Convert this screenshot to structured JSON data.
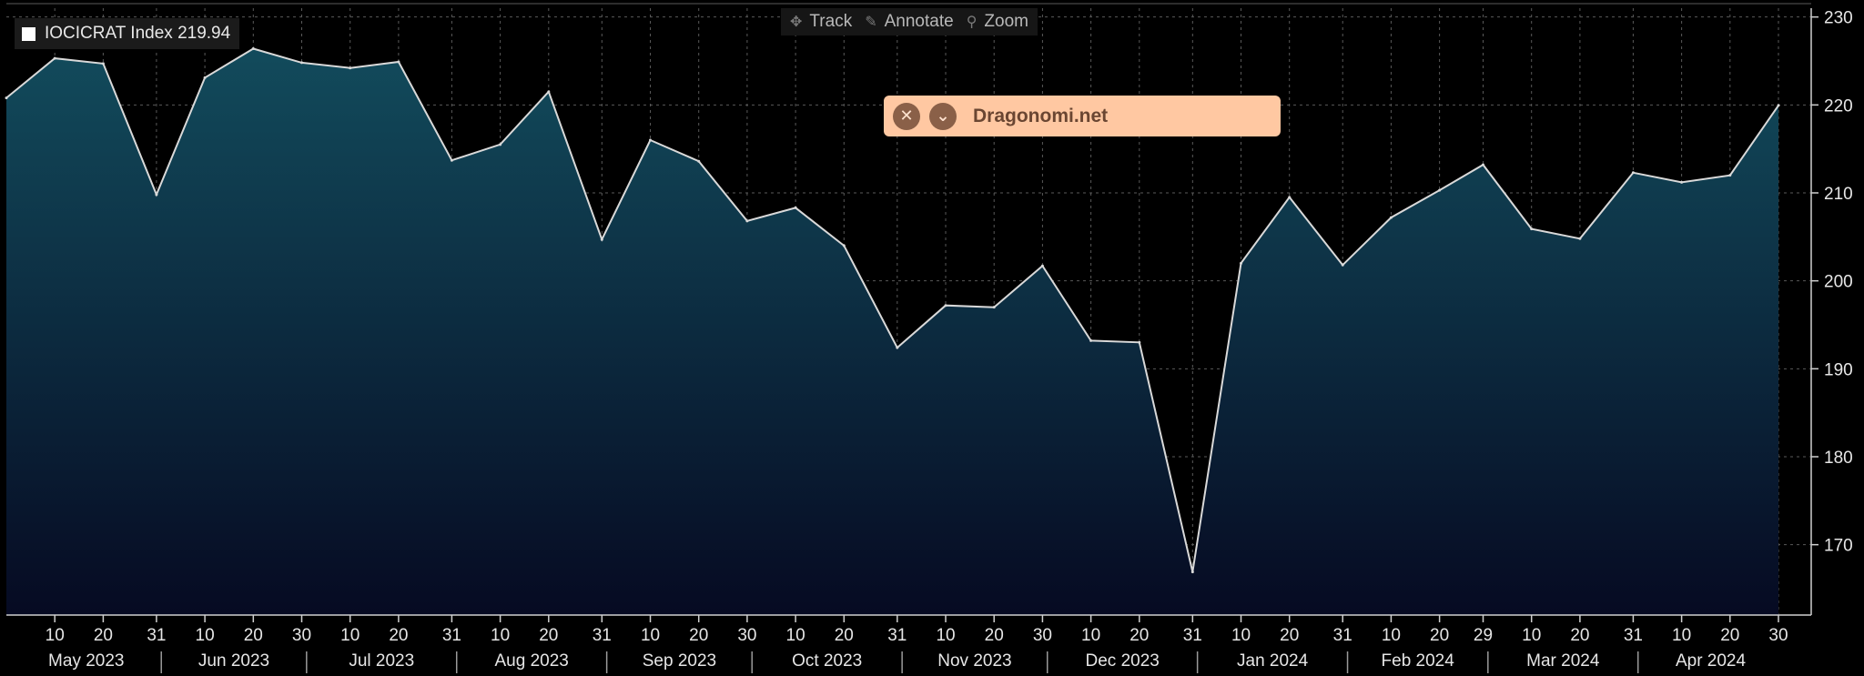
{
  "legend": {
    "label": "IOCICRAT Index 219.94",
    "swatch_color": "#ffffff"
  },
  "toolbar": {
    "track_label": "Track",
    "annotate_label": "Annotate",
    "zoom_label": "Zoom"
  },
  "banner": {
    "text": "Dragonomi.net",
    "close_icon": "close-icon",
    "expand_icon": "chevron-down-icon"
  },
  "colors": {
    "background": "#000000",
    "line": "#d9d9d9",
    "fill_top": "#124b5c",
    "fill_bottom": "#060a22",
    "banner": "#ffc8a2"
  },
  "chart_data": {
    "type": "area",
    "title": "",
    "xlabel": "",
    "ylabel": "",
    "ylim": [
      162,
      231
    ],
    "yticks": [
      170,
      180,
      190,
      200,
      210,
      220,
      230
    ],
    "grid": true,
    "y_axis_side": "right",
    "series": [
      {
        "name": "IOCICRAT Index",
        "x": [
          "2023-04-30",
          "2023-05-10",
          "2023-05-20",
          "2023-05-31",
          "2023-06-10",
          "2023-06-20",
          "2023-06-30",
          "2023-07-10",
          "2023-07-20",
          "2023-07-31",
          "2023-08-10",
          "2023-08-20",
          "2023-08-31",
          "2023-09-10",
          "2023-09-20",
          "2023-09-30",
          "2023-10-10",
          "2023-10-20",
          "2023-10-31",
          "2023-11-10",
          "2023-11-20",
          "2023-11-30",
          "2023-12-10",
          "2023-12-20",
          "2023-12-31",
          "2024-01-10",
          "2024-01-20",
          "2024-01-31",
          "2024-02-10",
          "2024-02-20",
          "2024-02-29",
          "2024-03-10",
          "2024-03-20",
          "2024-03-31",
          "2024-04-10",
          "2024-04-20",
          "2024-04-30"
        ],
        "values": [
          220.8,
          225.3,
          224.7,
          209.8,
          223.1,
          226.4,
          224.8,
          224.2,
          224.9,
          213.7,
          215.5,
          221.5,
          204.7,
          216.0,
          213.6,
          206.8,
          208.3,
          204.0,
          192.4,
          197.2,
          197.0,
          201.7,
          193.2,
          193.0,
          166.9,
          202.0,
          209.5,
          201.8,
          207.2,
          210.3,
          213.2,
          205.9,
          204.8,
          212.3,
          211.2,
          212.0,
          219.94
        ]
      }
    ],
    "x_day_ticks": [
      "10",
      "20",
      "31",
      "10",
      "20",
      "30",
      "10",
      "20",
      "31",
      "10",
      "20",
      "31",
      "10",
      "20",
      "30",
      "10",
      "20",
      "31",
      "10",
      "20",
      "30",
      "10",
      "20",
      "31",
      "10",
      "20",
      "31",
      "10",
      "20",
      "29",
      "10",
      "20",
      "31",
      "10",
      "20",
      "30"
    ],
    "x_month_labels": [
      "May 2023",
      "Jun 2023",
      "Jul 2023",
      "Aug 2023",
      "Sep 2023",
      "Oct 2023",
      "Nov 2023",
      "Dec 2023",
      "Jan 2024",
      "Feb 2024",
      "Mar 2024",
      "Apr 2024"
    ]
  }
}
